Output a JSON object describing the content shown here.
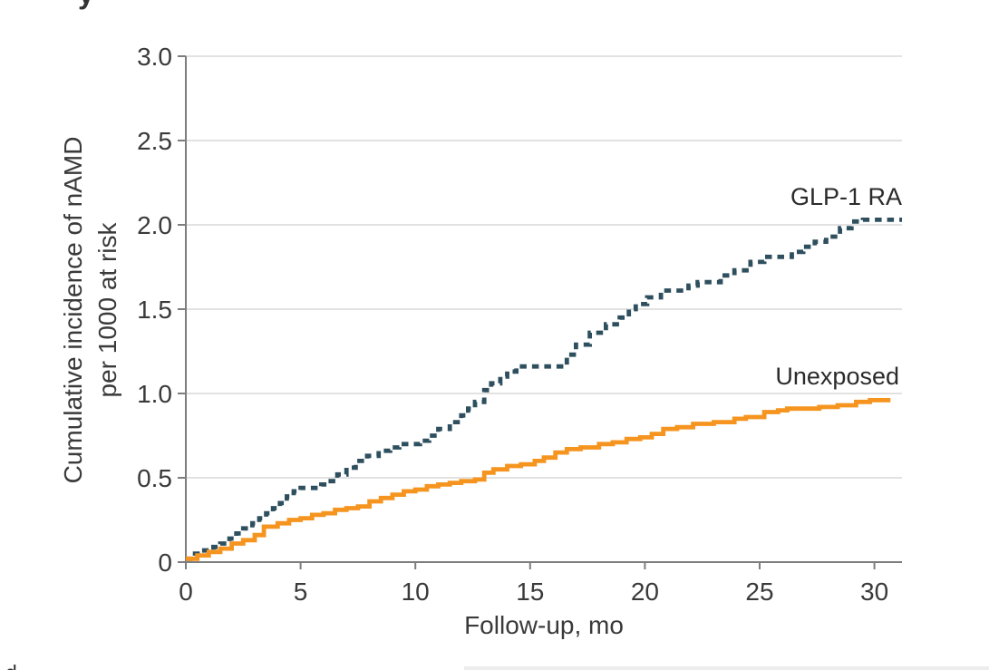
{
  "figure": {
    "top_edge_partial_glyph": "y",
    "bottom_left_partial_glyph": "d"
  },
  "chart_data": {
    "type": "line",
    "subtype": "cumulative-incidence-step-curves",
    "title": "",
    "xlabel": "Follow-up, mo",
    "ylabel_lines": [
      "Cumulative incidence of nAMD",
      "per 1000 at risk"
    ],
    "xlim": [
      0,
      31.2
    ],
    "ylim": [
      0,
      3.0
    ],
    "xticks": [
      0,
      5,
      10,
      15,
      20,
      25,
      30
    ],
    "xtick_labels": [
      "0",
      "5",
      "10",
      "15",
      "20",
      "25",
      "30"
    ],
    "yticks": [
      0,
      0.5,
      1.0,
      1.5,
      2.0,
      2.5,
      3.0
    ],
    "ytick_labels": [
      "0",
      "0.5",
      "1.0",
      "1.5",
      "2.0",
      "2.5",
      "3.0"
    ],
    "grid": "horizontal-only",
    "legend_position": "inline-right-of-curves",
    "colors": {
      "axis": "#7d7d7d",
      "grid": "#d9d9d9",
      "text": "#3a3a3a"
    },
    "series": [
      {
        "name": "GLP-1 RA",
        "line_style": "dashed",
        "color": "#2E4F5E",
        "points": [
          [
            0,
            0.02
          ],
          [
            0.4,
            0.05
          ],
          [
            0.8,
            0.07
          ],
          [
            1.2,
            0.09
          ],
          [
            1.5,
            0.11
          ],
          [
            1.9,
            0.14
          ],
          [
            2.2,
            0.17
          ],
          [
            2.5,
            0.2
          ],
          [
            2.9,
            0.23
          ],
          [
            3.2,
            0.26
          ],
          [
            3.5,
            0.29
          ],
          [
            3.8,
            0.32
          ],
          [
            4.1,
            0.35
          ],
          [
            4.4,
            0.39
          ],
          [
            4.7,
            0.42
          ],
          [
            5,
            0.44
          ],
          [
            5.9,
            0.46
          ],
          [
            6.2,
            0.48
          ],
          [
            6.6,
            0.52
          ],
          [
            7,
            0.56
          ],
          [
            7.4,
            0.6
          ],
          [
            7.9,
            0.63
          ],
          [
            8.4,
            0.66
          ],
          [
            8.9,
            0.68
          ],
          [
            9.3,
            0.7
          ],
          [
            10.2,
            0.72
          ],
          [
            10.6,
            0.75
          ],
          [
            11,
            0.79
          ],
          [
            11.5,
            0.83
          ],
          [
            12,
            0.87
          ],
          [
            12.3,
            0.91
          ],
          [
            12.6,
            0.95
          ],
          [
            13,
            1.02
          ],
          [
            13.3,
            1.06
          ],
          [
            13.7,
            1.1
          ],
          [
            14,
            1.13
          ],
          [
            14.4,
            1.16
          ],
          [
            16.3,
            1.16
          ],
          [
            16.6,
            1.23
          ],
          [
            17,
            1.29
          ],
          [
            17.6,
            1.36
          ],
          [
            18.3,
            1.41
          ],
          [
            18.9,
            1.45
          ],
          [
            19.3,
            1.5
          ],
          [
            19.6,
            1.53
          ],
          [
            20.1,
            1.57
          ],
          [
            20.7,
            1.61
          ],
          [
            21.9,
            1.64
          ],
          [
            22.3,
            1.66
          ],
          [
            23.3,
            1.7
          ],
          [
            23.9,
            1.73
          ],
          [
            24.6,
            1.78
          ],
          [
            25.2,
            1.81
          ],
          [
            26.4,
            1.84
          ],
          [
            26.9,
            1.87
          ],
          [
            27.4,
            1.9
          ],
          [
            27.9,
            1.93
          ],
          [
            28.5,
            1.98
          ],
          [
            29,
            2.02
          ],
          [
            29.5,
            2.03
          ],
          [
            31.2,
            2.03
          ]
        ]
      },
      {
        "name": "Unexposed",
        "line_style": "solid",
        "color": "#F5941F",
        "points": [
          [
            0,
            0.02
          ],
          [
            0.5,
            0.04
          ],
          [
            1,
            0.06
          ],
          [
            1.5,
            0.08
          ],
          [
            2,
            0.11
          ],
          [
            2.5,
            0.13
          ],
          [
            3,
            0.16
          ],
          [
            3.4,
            0.21
          ],
          [
            4,
            0.23
          ],
          [
            4.5,
            0.25
          ],
          [
            5,
            0.26
          ],
          [
            5.5,
            0.28
          ],
          [
            6,
            0.29
          ],
          [
            6.5,
            0.31
          ],
          [
            7,
            0.32
          ],
          [
            7.5,
            0.33
          ],
          [
            8,
            0.36
          ],
          [
            8.5,
            0.38
          ],
          [
            9,
            0.4
          ],
          [
            9.5,
            0.42
          ],
          [
            10,
            0.43
          ],
          [
            10.5,
            0.45
          ],
          [
            11,
            0.46
          ],
          [
            11.5,
            0.47
          ],
          [
            12,
            0.48
          ],
          [
            12.6,
            0.49
          ],
          [
            13,
            0.53
          ],
          [
            13.4,
            0.55
          ],
          [
            14,
            0.57
          ],
          [
            14.6,
            0.58
          ],
          [
            15.2,
            0.6
          ],
          [
            15.6,
            0.62
          ],
          [
            16.1,
            0.65
          ],
          [
            16.6,
            0.67
          ],
          [
            17.2,
            0.68
          ],
          [
            18,
            0.7
          ],
          [
            18.6,
            0.71
          ],
          [
            19.2,
            0.73
          ],
          [
            19.8,
            0.74
          ],
          [
            20.3,
            0.76
          ],
          [
            20.8,
            0.79
          ],
          [
            21.4,
            0.8
          ],
          [
            22.1,
            0.82
          ],
          [
            23,
            0.83
          ],
          [
            23.9,
            0.85
          ],
          [
            24.4,
            0.86
          ],
          [
            25.2,
            0.89
          ],
          [
            25.8,
            0.9
          ],
          [
            26.2,
            0.91
          ],
          [
            27.6,
            0.92
          ],
          [
            28.4,
            0.93
          ],
          [
            29.2,
            0.95
          ],
          [
            29.8,
            0.96
          ],
          [
            30.7,
            0.96
          ]
        ]
      }
    ]
  }
}
